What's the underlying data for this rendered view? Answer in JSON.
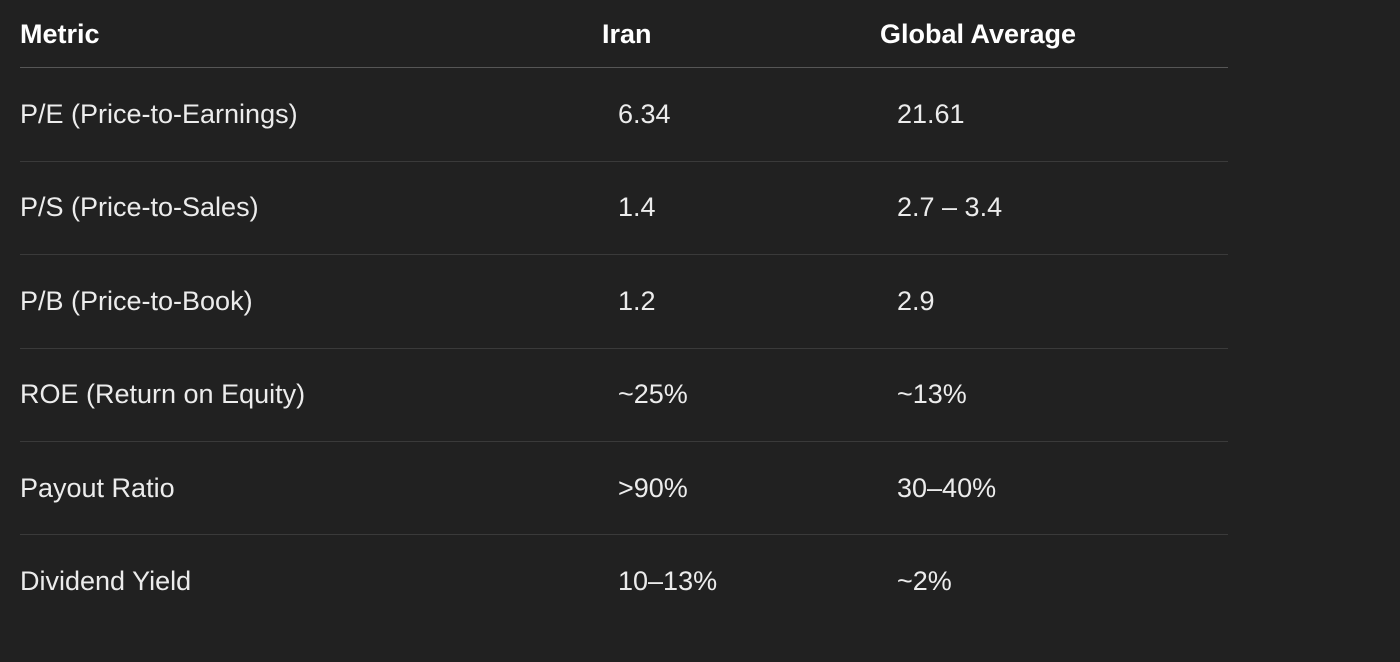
{
  "table": {
    "header": [
      "Metric",
      "Iran",
      "Global Average"
    ],
    "rows": [
      [
        "P/E (Price-to-Earnings)",
        "6.34",
        "21.61"
      ],
      [
        "P/S (Price-to-Sales)",
        "1.4",
        "2.7 – 3.4"
      ],
      [
        "P/B (Price-to-Book)",
        "1.2",
        "2.9"
      ],
      [
        "ROE (Return on Equity)",
        "~25%",
        "~13%"
      ],
      [
        "Payout Ratio",
        ">90%",
        "30–40%"
      ],
      [
        "Dividend Yield",
        "10–13%",
        "~2%"
      ]
    ]
  }
}
